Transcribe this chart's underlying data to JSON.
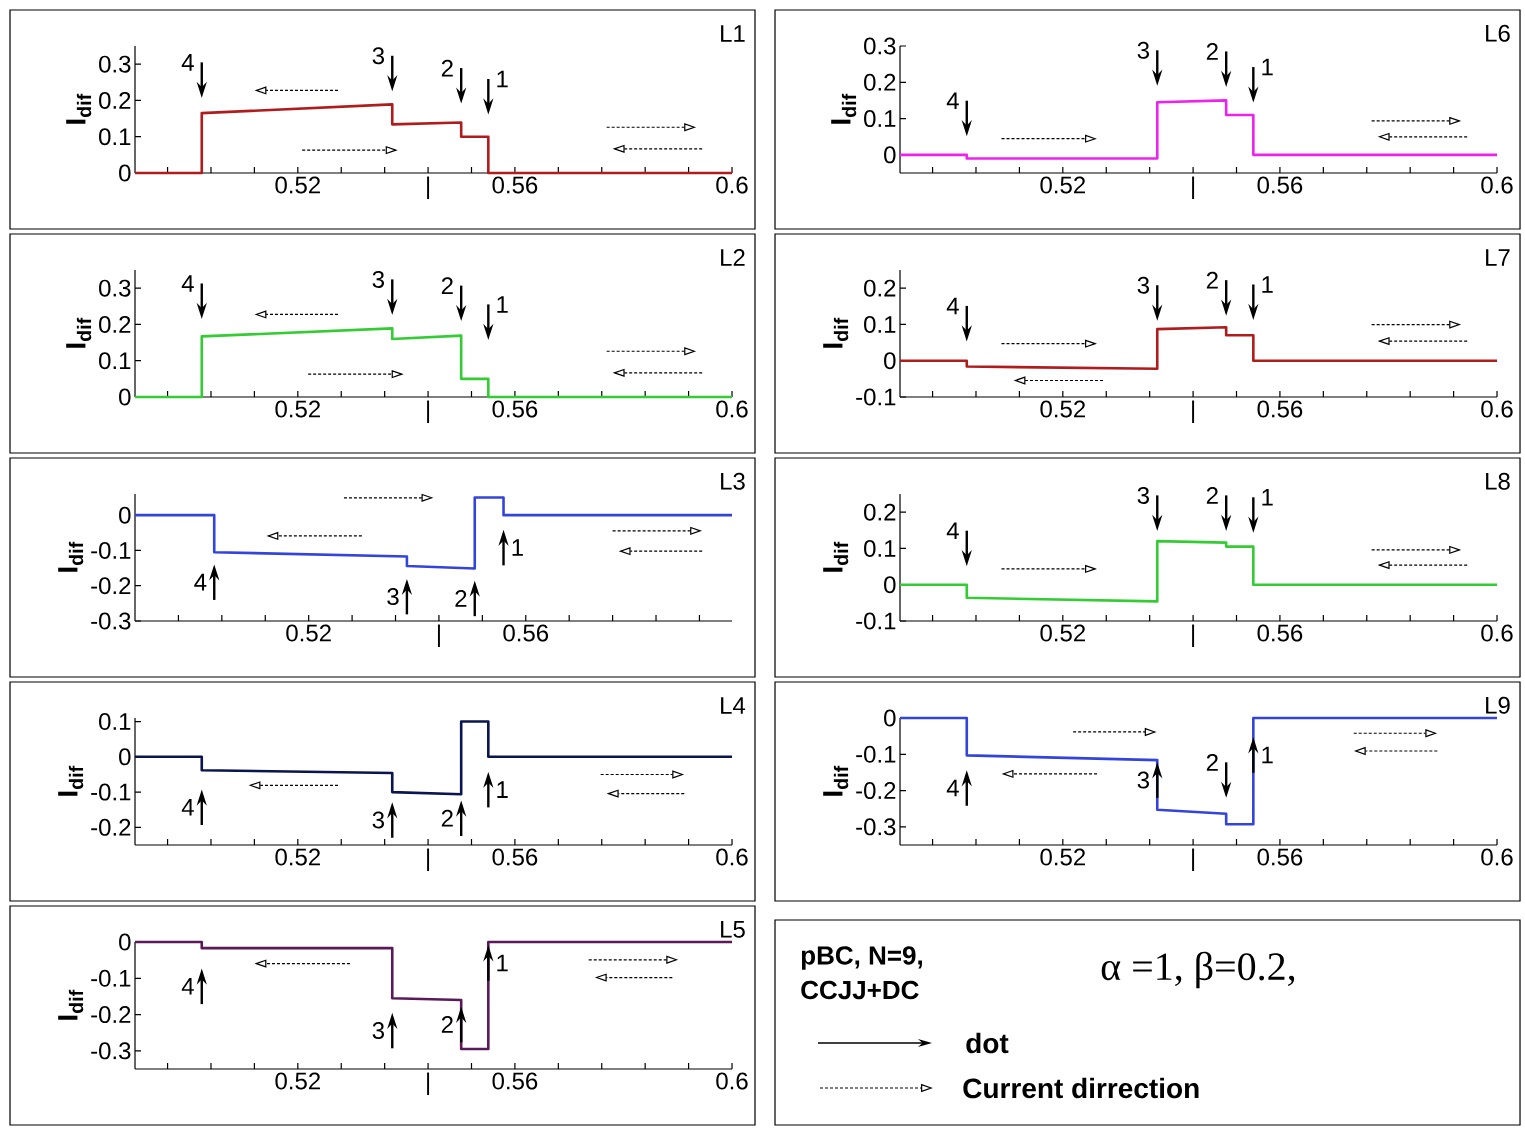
{
  "chart_data": [
    {
      "type": "line",
      "ylabel": "I$_{dif}$",
      "xlim": [
        0.49,
        0.6
      ],
      "ylim": [
        0,
        0.35
      ],
      "xticks": [
        {
          "value": 0.496,
          "label": null
        },
        {
          "value": 0.504,
          "label": null
        },
        {
          "value": 0.512,
          "label": null
        },
        0.52,
        {
          "value": 0.528,
          "label": null
        },
        {
          "value": 0.536,
          "label": null
        },
        {
          "value": 0.544,
          "label": "|"
        },
        {
          "value": 0.552,
          "label": null
        },
        0.56,
        {
          "value": 0.568,
          "label": null
        },
        {
          "value": 0.576,
          "label": null
        },
        {
          "value": 0.584,
          "label": null
        },
        {
          "value": 0.592,
          "label": null
        },
        0.6
      ],
      "yticks": [
        0,
        0.1,
        0.2,
        0.3
      ],
      "series": [
        {
          "color": "#b01c1c",
          "x": [
            0.49,
            0.5023,
            0.5023,
            0.5374,
            0.5374,
            0.5501,
            0.5501,
            0.5551,
            0.5551,
            0.6
          ],
          "values": [
            0,
            0,
            0.165,
            0.189,
            0.134,
            0.139,
            0.1,
            0.1,
            0,
            0
          ]
        }
      ],
      "annotations": [
        "L1",
        "4",
        "3",
        "2",
        "1"
      ]
    },
    {
      "type": "line",
      "ylabel": "I$_{dif}$",
      "xlim": [
        0.49,
        0.6
      ],
      "ylim": [
        -0.05,
        0.3
      ],
      "xticks": [
        {
          "value": 0.496,
          "label": null
        },
        {
          "value": 0.504,
          "label": null
        },
        {
          "value": 0.512,
          "label": null
        },
        0.52,
        {
          "value": 0.528,
          "label": null
        },
        {
          "value": 0.536,
          "label": null
        },
        {
          "value": 0.544,
          "label": "|"
        },
        {
          "value": 0.552,
          "label": null
        },
        0.56,
        {
          "value": 0.568,
          "label": null
        },
        {
          "value": 0.576,
          "label": null
        },
        {
          "value": 0.584,
          "label": null
        },
        {
          "value": 0.592,
          "label": null
        },
        0.6
      ],
      "yticks": [
        0,
        0.1,
        0.2,
        0.3
      ],
      "series": [
        {
          "color": "#ee22ee",
          "x": [
            0.49,
            0.5023,
            0.5023,
            0.5374,
            0.5374,
            0.5501,
            0.5501,
            0.5551,
            0.5551,
            0.6
          ],
          "values": [
            0,
            0,
            -0.01,
            -0.01,
            0.145,
            0.15,
            0.11,
            0.11,
            0,
            0
          ]
        }
      ],
      "annotations": [
        "L6",
        "4",
        "3",
        "2",
        "1"
      ]
    },
    {
      "type": "line",
      "ylabel": "I$_{dif}$",
      "xlim": [
        0.49,
        0.6
      ],
      "ylim": [
        0,
        0.35
      ],
      "xticks": [
        {
          "value": 0.496,
          "label": null
        },
        {
          "value": 0.504,
          "label": null
        },
        {
          "value": 0.512,
          "label": null
        },
        0.52,
        {
          "value": 0.528,
          "label": null
        },
        {
          "value": 0.536,
          "label": null
        },
        {
          "value": 0.544,
          "label": "|"
        },
        {
          "value": 0.552,
          "label": null
        },
        0.56,
        {
          "value": 0.568,
          "label": null
        },
        {
          "value": 0.576,
          "label": null
        },
        {
          "value": 0.584,
          "label": null
        },
        {
          "value": 0.592,
          "label": null
        },
        0.6
      ],
      "yticks": [
        0,
        0.1,
        0.2,
        0.3
      ],
      "series": [
        {
          "color": "#33cc33",
          "x": [
            0.49,
            0.5023,
            0.5023,
            0.5374,
            0.5374,
            0.5501,
            0.5501,
            0.5551,
            0.5551,
            0.6
          ],
          "values": [
            0,
            0,
            0.167,
            0.189,
            0.16,
            0.169,
            0.05,
            0.05,
            0,
            0
          ]
        }
      ],
      "annotations": [
        "L2",
        "4",
        "3",
        "2",
        "1"
      ]
    },
    {
      "type": "line",
      "ylabel": "I$_{dif}$",
      "xlim": [
        0.49,
        0.6
      ],
      "ylim": [
        -0.1,
        0.25
      ],
      "xticks": [
        {
          "value": 0.496,
          "label": null
        },
        {
          "value": 0.504,
          "label": null
        },
        {
          "value": 0.512,
          "label": null
        },
        0.52,
        {
          "value": 0.528,
          "label": null
        },
        {
          "value": 0.536,
          "label": null
        },
        {
          "value": 0.544,
          "label": "|"
        },
        {
          "value": 0.552,
          "label": null
        },
        0.56,
        {
          "value": 0.568,
          "label": null
        },
        {
          "value": 0.576,
          "label": null
        },
        {
          "value": 0.584,
          "label": null
        },
        {
          "value": 0.592,
          "label": null
        },
        0.6
      ],
      "yticks": [
        -0.1,
        0,
        0.1,
        0.2
      ],
      "series": [
        {
          "color": "#b01c1c",
          "x": [
            0.49,
            0.5023,
            0.5023,
            0.5374,
            0.5374,
            0.5501,
            0.5501,
            0.5551,
            0.5551,
            0.6
          ],
          "values": [
            0,
            0,
            -0.016,
            -0.022,
            0.087,
            0.092,
            0.07,
            0.07,
            0,
            0
          ]
        }
      ],
      "annotations": [
        "L7",
        "4",
        "3",
        "2",
        "1"
      ]
    },
    {
      "type": "line",
      "ylabel": "I$_{dif}$",
      "xlim": [
        0.488,
        0.598
      ],
      "ylim": [
        -0.3,
        0.06
      ],
      "xticks": [
        {
          "value": 0.496,
          "label": null
        },
        {
          "value": 0.504,
          "label": null
        },
        {
          "value": 0.512,
          "label": null
        },
        0.52,
        {
          "value": 0.528,
          "label": null
        },
        {
          "value": 0.536,
          "label": null
        },
        {
          "value": 0.544,
          "label": "|"
        },
        {
          "value": 0.552,
          "label": null
        },
        0.56,
        {
          "value": 0.568,
          "label": null
        },
        {
          "value": 0.576,
          "label": null
        },
        {
          "value": 0.584,
          "label": null
        },
        {
          "value": 0.592,
          "label": null
        }
      ],
      "yticks": [
        -0.3,
        -0.2,
        -0.1,
        0
      ],
      "series": [
        {
          "color": "#3344dd",
          "x": [
            0.488,
            0.5026,
            0.5026,
            0.5381,
            0.5381,
            0.5506,
            0.5506,
            0.5559,
            0.5559,
            0.598
          ],
          "values": [
            0,
            0,
            -0.105,
            -0.117,
            -0.144,
            -0.151,
            0.05,
            0.05,
            0,
            0
          ]
        }
      ],
      "annotations": [
        "L3",
        "4",
        "3",
        "2",
        "1"
      ]
    },
    {
      "type": "line",
      "ylabel": "I$_{dif}$",
      "xlim": [
        0.49,
        0.6
      ],
      "ylim": [
        -0.1,
        0.25
      ],
      "xticks": [
        {
          "value": 0.496,
          "label": null
        },
        {
          "value": 0.504,
          "label": null
        },
        {
          "value": 0.512,
          "label": null
        },
        0.52,
        {
          "value": 0.528,
          "label": null
        },
        {
          "value": 0.536,
          "label": null
        },
        {
          "value": 0.544,
          "label": "|"
        },
        {
          "value": 0.552,
          "label": null
        },
        0.56,
        {
          "value": 0.568,
          "label": null
        },
        {
          "value": 0.576,
          "label": null
        },
        {
          "value": 0.584,
          "label": null
        },
        {
          "value": 0.592,
          "label": null
        },
        0.6
      ],
      "yticks": [
        -0.1,
        0,
        0.1,
        0.2
      ],
      "series": [
        {
          "color": "#33cc33",
          "x": [
            0.49,
            0.5023,
            0.5023,
            0.5374,
            0.5374,
            0.5501,
            0.5501,
            0.5551,
            0.5551,
            0.6
          ],
          "values": [
            0,
            0,
            -0.036,
            -0.046,
            0.12,
            0.116,
            0.105,
            0.105,
            0,
            0
          ]
        }
      ],
      "annotations": [
        "L8",
        "4",
        "3",
        "2",
        "1"
      ]
    },
    {
      "type": "line",
      "ylabel": "I$_{dif}$",
      "xlim": [
        0.49,
        0.6
      ],
      "ylim": [
        -0.25,
        0.11
      ],
      "xticks": [
        {
          "value": 0.496,
          "label": null
        },
        {
          "value": 0.504,
          "label": null
        },
        {
          "value": 0.512,
          "label": null
        },
        0.52,
        {
          "value": 0.528,
          "label": null
        },
        {
          "value": 0.536,
          "label": null
        },
        {
          "value": 0.544,
          "label": "|"
        },
        {
          "value": 0.552,
          "label": null
        },
        0.56,
        {
          "value": 0.568,
          "label": null
        },
        {
          "value": 0.576,
          "label": null
        },
        {
          "value": 0.584,
          "label": null
        },
        {
          "value": 0.592,
          "label": null
        },
        0.6
      ],
      "yticks": [
        -0.2,
        -0.1,
        0,
        0.1
      ],
      "series": [
        {
          "color": "#0a1450",
          "x": [
            0.49,
            0.5023,
            0.5023,
            0.5374,
            0.5374,
            0.5501,
            0.5501,
            0.5551,
            0.5551,
            0.6
          ],
          "values": [
            0,
            0,
            -0.038,
            -0.046,
            -0.1,
            -0.106,
            0.1,
            0.1,
            0,
            0
          ]
        }
      ],
      "annotations": [
        "L4",
        "4",
        "3",
        "2",
        "1"
      ]
    },
    {
      "type": "line",
      "ylabel": "I$_{dif}$",
      "xlim": [
        0.49,
        0.6
      ],
      "ylim": [
        -0.35,
        0
      ],
      "xticks": [
        {
          "value": 0.496,
          "label": null
        },
        {
          "value": 0.504,
          "label": null
        },
        {
          "value": 0.512,
          "label": null
        },
        0.52,
        {
          "value": 0.528,
          "label": null
        },
        {
          "value": 0.536,
          "label": null
        },
        {
          "value": 0.544,
          "label": "|"
        },
        {
          "value": 0.552,
          "label": null
        },
        0.56,
        {
          "value": 0.568,
          "label": null
        },
        {
          "value": 0.576,
          "label": null
        },
        {
          "value": 0.584,
          "label": null
        },
        {
          "value": 0.592,
          "label": null
        },
        0.6
      ],
      "yticks": [
        -0.3,
        -0.2,
        -0.1,
        0
      ],
      "series": [
        {
          "color": "#3344dd",
          "x": [
            0.49,
            0.5023,
            0.5023,
            0.5374,
            0.5374,
            0.5501,
            0.5501,
            0.5551,
            0.5551,
            0.6
          ],
          "values": [
            0,
            0,
            -0.103,
            -0.116,
            -0.253,
            -0.264,
            -0.293,
            -0.293,
            0,
            0
          ]
        }
      ],
      "annotations": [
        "L9",
        "4",
        "3",
        "2",
        "1"
      ]
    },
    {
      "type": "line",
      "ylabel": "I$_{dif}$",
      "xlim": [
        0.49,
        0.6
      ],
      "ylim": [
        -0.35,
        0
      ],
      "xticks": [
        {
          "value": 0.496,
          "label": null
        },
        {
          "value": 0.504,
          "label": null
        },
        {
          "value": 0.512,
          "label": null
        },
        0.52,
        {
          "value": 0.528,
          "label": null
        },
        {
          "value": 0.536,
          "label": null
        },
        {
          "value": 0.544,
          "label": "|"
        },
        {
          "value": 0.552,
          "label": null
        },
        0.56,
        {
          "value": 0.568,
          "label": null
        },
        {
          "value": 0.576,
          "label": null
        },
        {
          "value": 0.584,
          "label": null
        },
        {
          "value": 0.592,
          "label": null
        },
        0.6
      ],
      "yticks": [
        -0.3,
        -0.2,
        -0.1,
        0
      ],
      "series": [
        {
          "color": "#5a1a5a",
          "x": [
            0.49,
            0.5023,
            0.5023,
            0.5374,
            0.5374,
            0.5501,
            0.5501,
            0.5551,
            0.5551,
            0.6
          ],
          "values": [
            0,
            0,
            -0.017,
            -0.017,
            -0.155,
            -0.16,
            -0.295,
            -0.295,
            0,
            0
          ]
        }
      ],
      "annotations": [
        "L5",
        "4",
        "3",
        "2",
        "1"
      ]
    },
    {
      "type": "other",
      "annotations": [
        "pBC, N=9,",
        "CCJJ+DC",
        "α =1, β=0.2,",
        "dot",
        "Current dirrection"
      ]
    }
  ]
}
